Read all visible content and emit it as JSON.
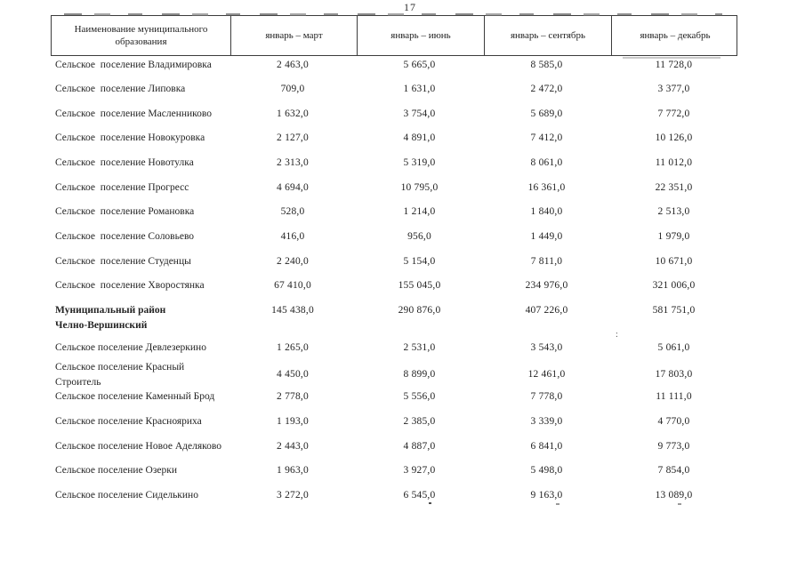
{
  "page": {
    "number": "17"
  },
  "table": {
    "columns": [
      "Наименование муниципального образования",
      "январь – март",
      "январь – июнь",
      "январь – сентябрь",
      "январь – декабрь"
    ],
    "rows": [
      {
        "name": "Сельское  поселение Владимировка",
        "bold": false,
        "tall": false,
        "values": [
          "2 463,0",
          "5 665,0",
          "8 585,0",
          "11 728,0"
        ]
      },
      {
        "name": "Сельское  поселение Липовка",
        "bold": false,
        "tall": false,
        "values": [
          "709,0",
          "1 631,0",
          "2 472,0",
          "3 377,0"
        ]
      },
      {
        "name": "Сельское  поселение Масленниково",
        "bold": false,
        "tall": false,
        "values": [
          "1 632,0",
          "3 754,0",
          "5 689,0",
          "7 772,0"
        ]
      },
      {
        "name": "Сельское  поселение Новокуровка",
        "bold": false,
        "tall": false,
        "values": [
          "2 127,0",
          "4 891,0",
          "7 412,0",
          "10 126,0"
        ]
      },
      {
        "name": "Сельское  поселение Новотулка",
        "bold": false,
        "tall": false,
        "values": [
          "2 313,0",
          "5 319,0",
          "8 061,0",
          "11 012,0"
        ]
      },
      {
        "name": "Сельское  поселение Прогресс",
        "bold": false,
        "tall": false,
        "values": [
          "4 694,0",
          "10 795,0",
          "16 361,0",
          "22 351,0"
        ]
      },
      {
        "name": "Сельское  поселение Романовка",
        "bold": false,
        "tall": false,
        "values": [
          "528,0",
          "1 214,0",
          "1 840,0",
          "2 513,0"
        ]
      },
      {
        "name": "Сельское  поселение Соловьево",
        "bold": false,
        "tall": false,
        "values": [
          "416,0",
          "956,0",
          "1 449,0",
          "1 979,0"
        ]
      },
      {
        "name": "Сельское  поселение Студенцы",
        "bold": false,
        "tall": false,
        "values": [
          "2 240,0",
          "5 154,0",
          "7 811,0",
          "10 671,0"
        ]
      },
      {
        "name": "Сельское  поселение Хворостянка",
        "bold": false,
        "tall": false,
        "values": [
          "67 410,0",
          "155 045,0",
          "234 976,0",
          "321 006,0"
        ]
      },
      {
        "name": "Муниципальный район\nЧелно-Вершинский",
        "bold": true,
        "tall": true,
        "values": [
          "145 438,0",
          "290 876,0",
          "407 226,0",
          "581 751,0"
        ]
      },
      {
        "name": "Сельское поселение Девлезеркино",
        "bold": false,
        "tall": false,
        "values": [
          "1 265,0",
          "2 531,0",
          "3 543,0",
          "5 061,0"
        ]
      },
      {
        "name": "Сельское поселение Красный Строитель",
        "bold": false,
        "tall": false,
        "values": [
          "4 450,0",
          "8 899,0",
          "12 461,0",
          "17 803,0"
        ]
      },
      {
        "name": "Сельское поселение Каменный Брод",
        "bold": false,
        "tall": false,
        "values": [
          "2 778,0",
          "5 556,0",
          "7 778,0",
          "11 111,0"
        ]
      },
      {
        "name": "Сельское поселение Краснояриха",
        "bold": false,
        "tall": false,
        "values": [
          "1 193,0",
          "2 385,0",
          "3 339,0",
          "4 770,0"
        ]
      },
      {
        "name": "Сельское поселение Новое Аделяково",
        "bold": false,
        "tall": false,
        "values": [
          "2 443,0",
          "4 887,0",
          "6 841,0",
          "9 773,0"
        ]
      },
      {
        "name": "Сельское поселение Озерки",
        "bold": false,
        "tall": false,
        "values": [
          "1 963,0",
          "3 927,0",
          "5 498,0",
          "7 854,0"
        ]
      },
      {
        "name": "Сельское поселение Сиделькино",
        "bold": false,
        "tall": false,
        "values": [
          "3 272,0",
          "6 545,0",
          "9 163,0",
          "13 089,0"
        ]
      }
    ]
  },
  "artifacts": {
    "colon_mark": ":"
  }
}
